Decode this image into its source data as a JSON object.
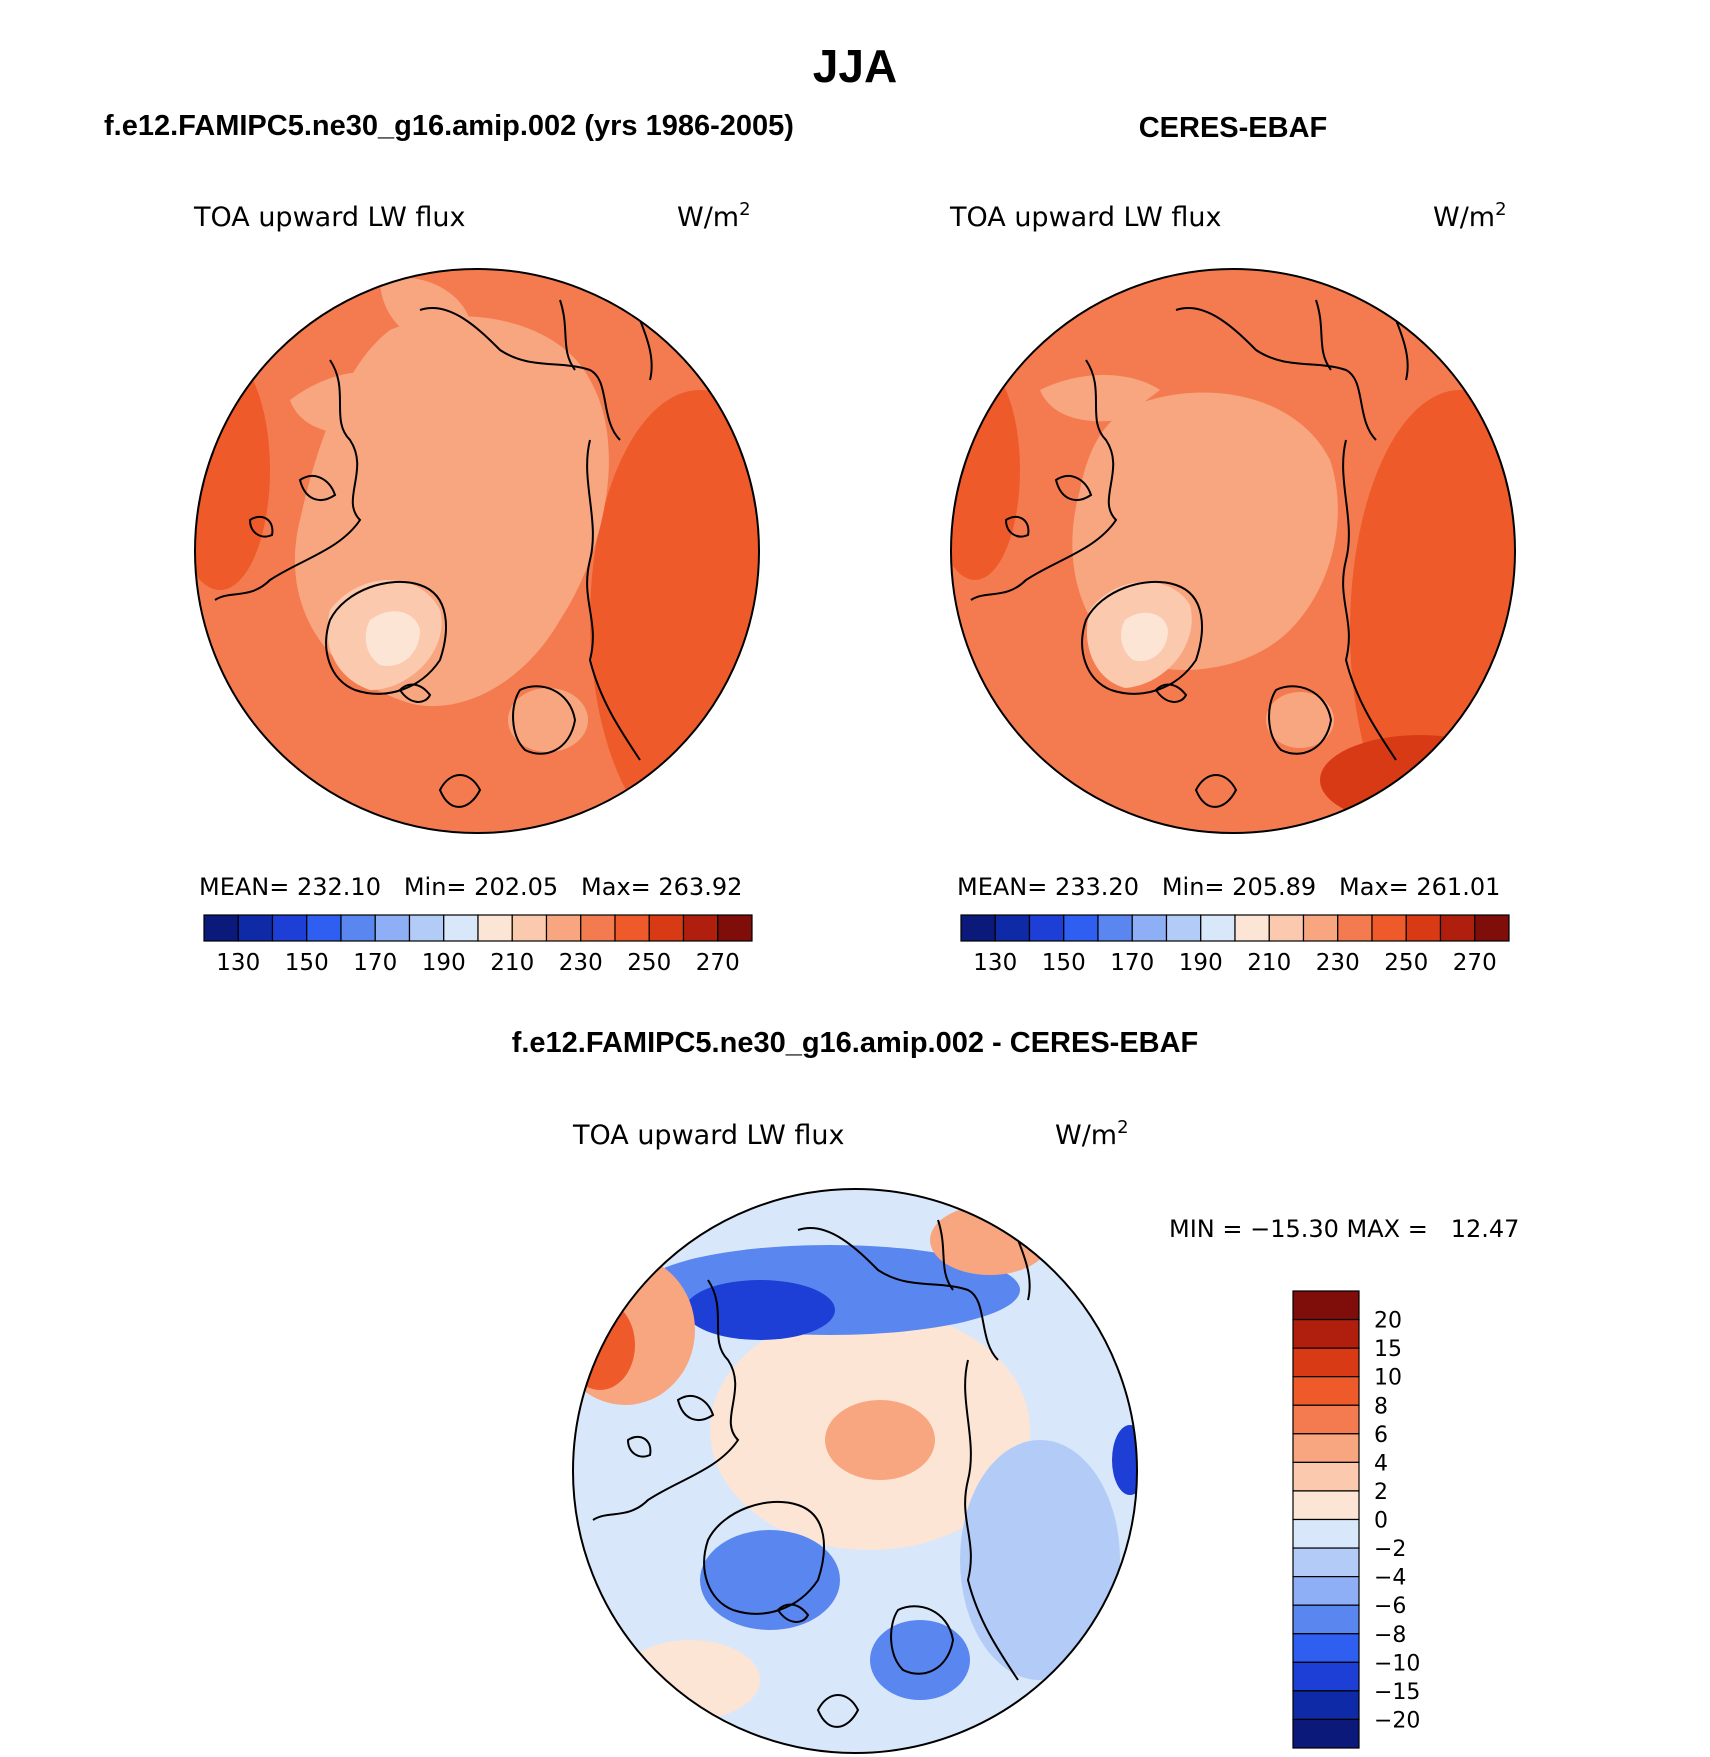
{
  "chart_data": {
    "type": "polar-contour-map",
    "title": "JJA",
    "panels": [
      {
        "id": "model",
        "title": "f.e12.FAMIPC5.ne30_g16.amip.002 (yrs 1986-2005)",
        "variable": "TOA upward LW flux",
        "units": "W/m",
        "units_sup": "2",
        "stats": "MEAN= 232.10   Min= 202.05   Max= 263.92",
        "colorbar": {
          "orientation": "horizontal",
          "tick_labels": [
            "130",
            "150",
            "170",
            "190",
            "210",
            "230",
            "250",
            "270"
          ],
          "colors": [
            "#0b1a7a",
            "#0f2aa6",
            "#1e3fd6",
            "#2e5ff0",
            "#5a86f0",
            "#8eaef5",
            "#b3cbf7",
            "#d9e7fb",
            "#fde5d5",
            "#fbc9ad",
            "#f8a680",
            "#f47b4f",
            "#ef5a2a",
            "#d83a16",
            "#b01f0e",
            "#7f0d0a"
          ]
        },
        "field": {
          "base": "#f47b4f",
          "regions": [
            "#f8a680",
            "#fbc9ad",
            "#fde5d5",
            "#ef5a2a",
            "#d83a16"
          ]
        }
      },
      {
        "id": "obs",
        "title": "CERES-EBAF",
        "variable": "TOA upward LW flux",
        "units": "W/m",
        "units_sup": "2",
        "stats": "MEAN= 233.20   Min= 205.89   Max= 261.01",
        "colorbar": {
          "orientation": "horizontal",
          "tick_labels": [
            "130",
            "150",
            "170",
            "190",
            "210",
            "230",
            "250",
            "270"
          ],
          "colors": [
            "#0b1a7a",
            "#0f2aa6",
            "#1e3fd6",
            "#2e5ff0",
            "#5a86f0",
            "#8eaef5",
            "#b3cbf7",
            "#d9e7fb",
            "#fde5d5",
            "#fbc9ad",
            "#f8a680",
            "#f47b4f",
            "#ef5a2a",
            "#d83a16",
            "#b01f0e",
            "#7f0d0a"
          ]
        },
        "field": {
          "base": "#f47b4f",
          "regions": [
            "#f8a680",
            "#fbc9ad",
            "#fde5d5",
            "#ef5a2a",
            "#d83a16"
          ]
        }
      },
      {
        "id": "diff",
        "title": "f.e12.FAMIPC5.ne30_g16.amip.002 - CERES-EBAF",
        "variable": "TOA upward LW flux",
        "units": "W/m",
        "units_sup": "2",
        "stats": "MIN = −15.30 MAX =   12.47",
        "colorbar": {
          "orientation": "vertical",
          "tick_labels": [
            "20",
            "15",
            "10",
            "8",
            "6",
            "4",
            "2",
            "0",
            "−2",
            "−4",
            "−6",
            "−8",
            "−10",
            "−15",
            "−20"
          ],
          "colors": [
            "#7f0d0a",
            "#b01f0e",
            "#d83a16",
            "#ef5a2a",
            "#f47b4f",
            "#f8a680",
            "#fbc9ad",
            "#fde5d5",
            "#d9e7fb",
            "#b3cbf7",
            "#8eaef5",
            "#5a86f0",
            "#2e5ff0",
            "#1e3fd6",
            "#0f2aa6",
            "#0b1a7a"
          ]
        },
        "field": {
          "base": "#d9e7fb",
          "regions": [
            "#fde5d5",
            "#b3cbf7",
            "#5a86f0",
            "#1e3fd6",
            "#f8a680",
            "#ef5a2a"
          ]
        }
      }
    ]
  }
}
